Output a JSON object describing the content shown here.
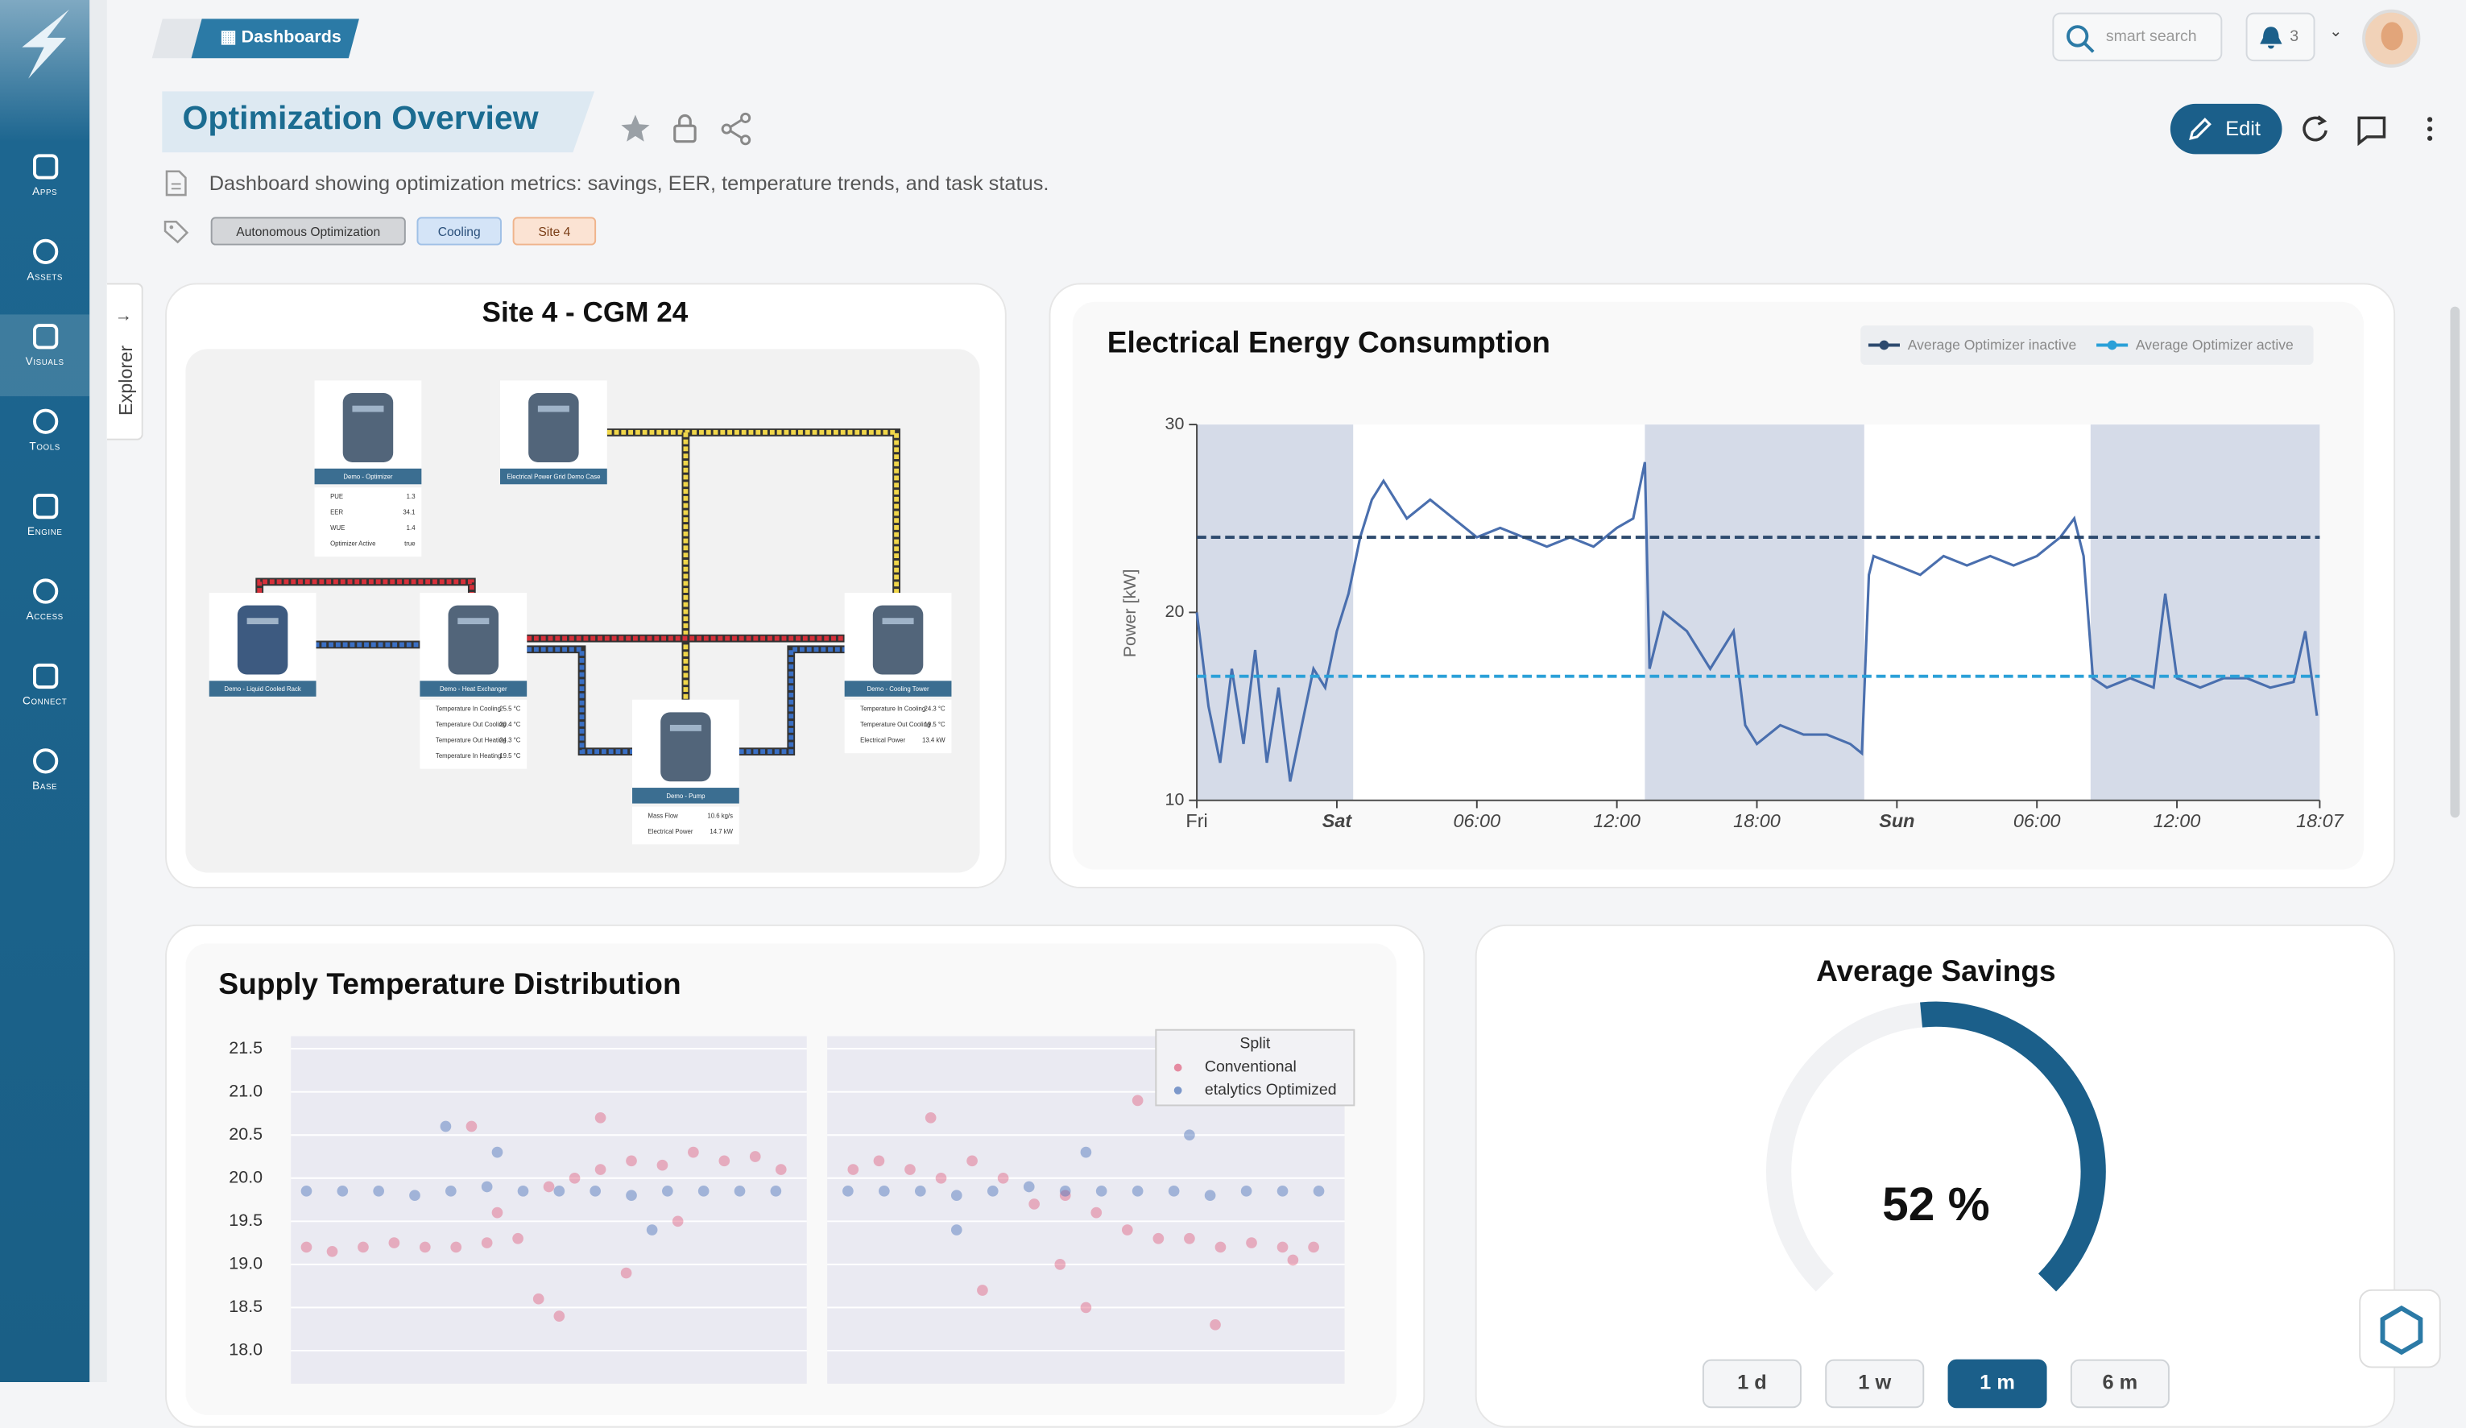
{
  "sidebar": {
    "items": [
      "Apps",
      "Assets",
      "Visuals",
      "Tools",
      "Engine",
      "Access",
      "Connect",
      "Base"
    ]
  },
  "header": {
    "breadcrumb": "Dashboards",
    "search": "smart search",
    "notifications": 3
  },
  "dashboard": {
    "title": "Optimization Overview",
    "description": "Dashboard showing optimization metrics: savings, EER, temperature trends, and task status.",
    "tags": [
      "Autonomous Optimization",
      "Cooling",
      "Site 4"
    ],
    "edit": "Edit",
    "explorer": "Explorer"
  },
  "diagram": {
    "title": "Site 4 - CGM 24",
    "nodes": [
      {
        "label": "Demo - Optimizer",
        "props": [
          {
            "name": "PUE",
            "value": "1.3"
          },
          {
            "name": "EER",
            "value": "34.1"
          },
          {
            "name": "WUE",
            "value": "1.4"
          },
          {
            "name": "Optimizer Active",
            "value": "true"
          }
        ]
      },
      {
        "label": "Electrical Power Grid Demo Case",
        "props": []
      },
      {
        "label": "Demo - Liquid Cooled Rack",
        "props": []
      },
      {
        "label": "Demo - Heat Exchanger",
        "props": [
          {
            "name": "Temperature In Cooling",
            "value": "25.5 °C"
          },
          {
            "name": "Temperature Out Cooling",
            "value": "20.4 °C"
          },
          {
            "name": "Temperature Out Heating",
            "value": "24.3 °C"
          },
          {
            "name": "Temperature In Heating",
            "value": "19.5 °C"
          }
        ]
      },
      {
        "label": "Demo - Pump",
        "props": [
          {
            "name": "Mass Flow",
            "value": "10.6 kg/s"
          },
          {
            "name": "Electrical Power",
            "value": "14.7 kW"
          }
        ]
      },
      {
        "label": "Demo - Cooling Tower",
        "props": [
          {
            "name": "Temperature In Cooling",
            "value": "24.3 °C"
          },
          {
            "name": "Temperature Out Cooling",
            "value": "19.5 °C"
          },
          {
            "name": "Electrical Power",
            "value": "13.4 kW"
          }
        ]
      }
    ]
  },
  "chart_data": [
    {
      "type": "line",
      "title": "Electrical Energy Consumption",
      "ylabel": "Power [kW]",
      "color": "#4a6fae",
      "x": [
        0,
        0.5,
        1,
        1.5,
        2,
        2.5,
        3,
        3.5,
        4,
        4.5,
        5,
        5.5,
        6,
        6.5,
        7,
        7.5,
        8,
        9,
        10,
        11,
        12,
        13,
        14,
        15,
        16,
        17,
        18,
        18.7,
        19.2,
        19.4,
        20,
        21,
        22,
        23,
        23.5,
        24,
        25,
        26,
        27,
        28,
        28.5,
        28.8,
        29,
        30,
        31,
        32,
        33,
        34,
        35,
        36,
        37,
        37.6,
        38,
        38.4,
        39,
        40,
        41,
        41.5,
        42,
        43,
        44,
        45,
        46,
        47,
        47.5,
        48
      ],
      "values": [
        20,
        15,
        12,
        17,
        13,
        18,
        12,
        16,
        11,
        14,
        17,
        16,
        19,
        21,
        24,
        26,
        27,
        25,
        26,
        25,
        24,
        24.5,
        24,
        23.5,
        24,
        23.5,
        24.5,
        25,
        28,
        17,
        20,
        19,
        17,
        19,
        14,
        13,
        14,
        13.5,
        13.5,
        13,
        12.5,
        22,
        23,
        22.5,
        22,
        23,
        22.5,
        23,
        22.5,
        23,
        24,
        25,
        23,
        16.5,
        16,
        16.5,
        16,
        21,
        16.5,
        16,
        16.5,
        16.5,
        16,
        16.3,
        19,
        14.5
      ],
      "xlim": [
        0,
        48.12
      ],
      "xticks": [
        {
          "value": 0,
          "label": "Fri"
        },
        {
          "value": 6,
          "label": "Sat"
        },
        {
          "value": 12,
          "label": "06:00"
        },
        {
          "value": 18,
          "label": "12:00"
        },
        {
          "value": 24,
          "label": "18:00"
        },
        {
          "value": 30,
          "label": "Sun"
        },
        {
          "value": 36,
          "label": "06:00"
        },
        {
          "value": 42,
          "label": "12:00"
        },
        {
          "value": 48.12,
          "label": "18:07"
        }
      ],
      "ylim": [
        10,
        30
      ],
      "yticks": [
        10,
        20,
        30
      ],
      "bands": [
        [
          0,
          6.7
        ],
        [
          19.2,
          28.6
        ],
        [
          38.3,
          48.12
        ]
      ],
      "band_color": "#d5dbe8",
      "reference_lines": [
        {
          "name": "Average Optimizer inactive",
          "color": "#2d4a6e",
          "value": 24
        },
        {
          "name": "Average Optimizer active",
          "color": "#2aa0d8",
          "value": 16.6
        }
      ]
    },
    {
      "type": "scatter",
      "title": "Supply Temperature Distribution",
      "ylim": [
        17.75,
        21.65
      ],
      "yticks": [
        {
          "value": 18,
          "label": "18.0"
        },
        18.5,
        {
          "value": 19,
          "label": "19.0"
        },
        19.5,
        {
          "value": 20,
          "label": "20.0"
        },
        20.5,
        {
          "value": 21,
          "label": "21.0"
        },
        21.5
      ],
      "xlim": [
        0,
        100
      ],
      "legend": {
        "title": "Split",
        "entries": [
          {
            "name": "Conventional",
            "color": "#e0607e"
          },
          {
            "name": "etalytics Optimized",
            "color": "#4a72b8"
          }
        ]
      },
      "panels": [
        {
          "series": [
            {
              "x": [
                3,
                8,
                14,
                20,
                26,
                32,
                38,
                44,
                50,
                55,
                60,
                66,
                72,
                78,
                84,
                90,
                95,
                35,
                48,
                60,
                75,
                52,
                40,
                65
              ],
              "values": [
                19.2,
                19.15,
                19.2,
                19.25,
                19.2,
                19.2,
                19.25,
                19.3,
                19.9,
                20.0,
                20.1,
                20.2,
                20.15,
                20.3,
                20.2,
                20.25,
                20.1,
                20.6,
                18.6,
                20.7,
                19.5,
                18.4,
                19.6,
                18.9
              ]
            },
            {
              "x": [
                3,
                10,
                17,
                24,
                31,
                38,
                45,
                52,
                59,
                66,
                73,
                80,
                87,
                94,
                40,
                70,
                30
              ],
              "values": [
                19.85,
                19.85,
                19.85,
                19.8,
                19.85,
                19.9,
                19.85,
                19.85,
                19.85,
                19.8,
                19.85,
                19.85,
                19.85,
                19.85,
                20.3,
                19.4,
                20.6
              ]
            }
          ]
        },
        {
          "series": [
            {
              "x": [
                5,
                10,
                16,
                22,
                28,
                34,
                40,
                46,
                52,
                58,
                64,
                70,
                76,
                82,
                88,
                94,
                30,
                50,
                20,
                60,
                45,
                90,
                75
              ],
              "values": [
                20.1,
                20.2,
                20.1,
                20.0,
                20.2,
                20.0,
                19.7,
                19.8,
                19.6,
                19.4,
                19.3,
                19.3,
                19.2,
                19.25,
                19.2,
                19.2,
                18.7,
                18.5,
                20.7,
                20.9,
                19.0,
                19.05,
                18.3
              ]
            },
            {
              "x": [
                4,
                11,
                18,
                25,
                32,
                39,
                46,
                53,
                60,
                67,
                74,
                81,
                88,
                95,
                50,
                25,
                70
              ],
              "values": [
                19.85,
                19.85,
                19.85,
                19.8,
                19.85,
                19.9,
                19.85,
                19.85,
                19.85,
                19.85,
                19.8,
                19.85,
                19.85,
                19.85,
                20.3,
                19.4,
                20.5
              ]
            }
          ]
        }
      ]
    },
    {
      "type": "gauge",
      "title": "Average Savings",
      "value": 52,
      "value_label": "52 %",
      "range": [
        0,
        100
      ],
      "color": "#1b5f8a",
      "ranges": [
        "1 d",
        "1 w",
        "1 m",
        "6 m"
      ],
      "active_range": 2
    }
  ]
}
